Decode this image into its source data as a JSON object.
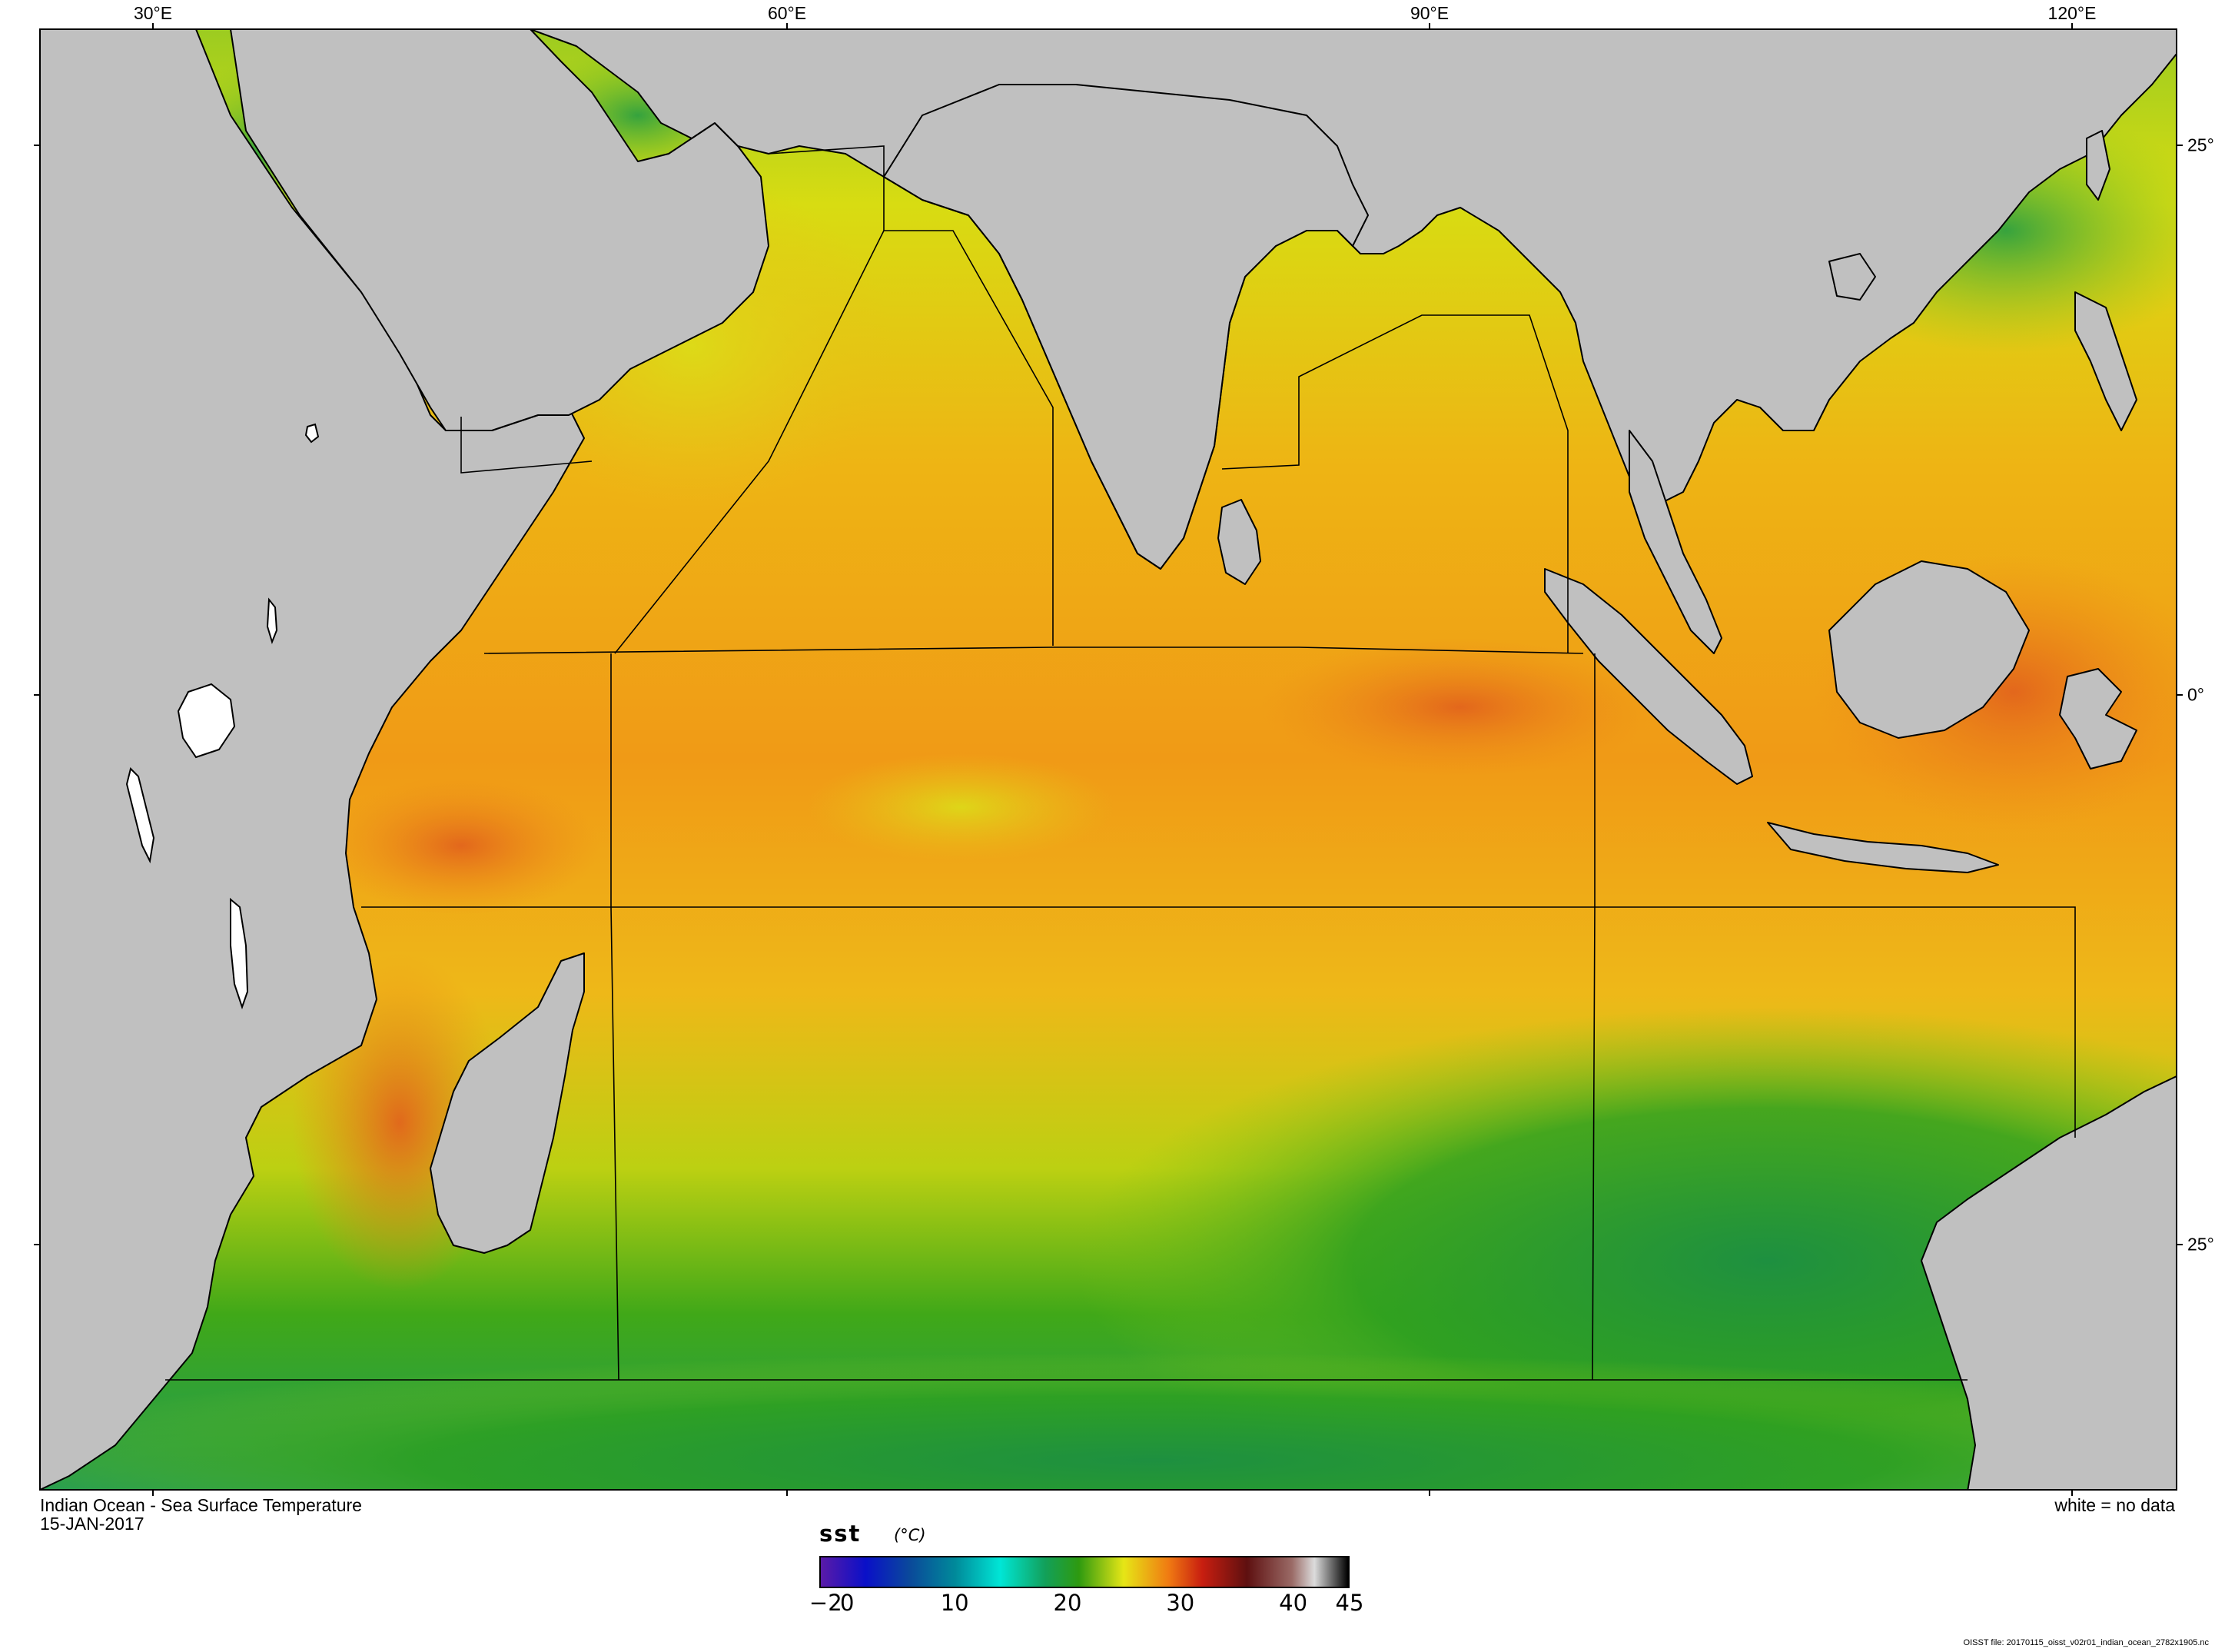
{
  "map": {
    "title": "Indian Ocean - Sea Surface Temperature",
    "date": "15-JAN-2017",
    "no_data_note": "white = no data",
    "file_note": "OISST file: 20170115_oisst_v02r01_indian_ocean_2782x1905.nc",
    "lon_labels": [
      "30°E",
      "60°E",
      "90°E",
      "120°E"
    ],
    "lat_labels": [
      "25°",
      "0°",
      "25°"
    ],
    "colors": {
      "land": "#c0c0c0",
      "no_data": "#ffffff",
      "frame": "#000000",
      "cold_ocean": "#22a05a",
      "warm_ocean": "#f0a020",
      "hot_ocean": "#e2661a"
    }
  },
  "colorbar": {
    "variable": "sst",
    "units": "(°C)",
    "range": [
      -2,
      45
    ],
    "tick_labels": [
      "−2",
      "0",
      "10",
      "20",
      "30",
      "40",
      "45"
    ],
    "tick_values": [
      -2,
      0,
      10,
      20,
      30,
      40,
      45
    ],
    "stops": [
      {
        "value": -2,
        "color": "#5a1aa8"
      },
      {
        "value": 2,
        "color": "#0a10c8"
      },
      {
        "value": 6,
        "color": "#0a4a9a"
      },
      {
        "value": 10,
        "color": "#008a9a"
      },
      {
        "value": 14,
        "color": "#00e6d6"
      },
      {
        "value": 18,
        "color": "#12a05a"
      },
      {
        "value": 21,
        "color": "#2e9a10"
      },
      {
        "value": 25,
        "color": "#e6e616"
      },
      {
        "value": 29,
        "color": "#f07a12"
      },
      {
        "value": 32,
        "color": "#c81e10"
      },
      {
        "value": 36,
        "color": "#5e1010"
      },
      {
        "value": 40,
        "color": "#9a6a66"
      },
      {
        "value": 42,
        "color": "#dcdcdc"
      },
      {
        "value": 45,
        "color": "#000000"
      }
    ]
  }
}
